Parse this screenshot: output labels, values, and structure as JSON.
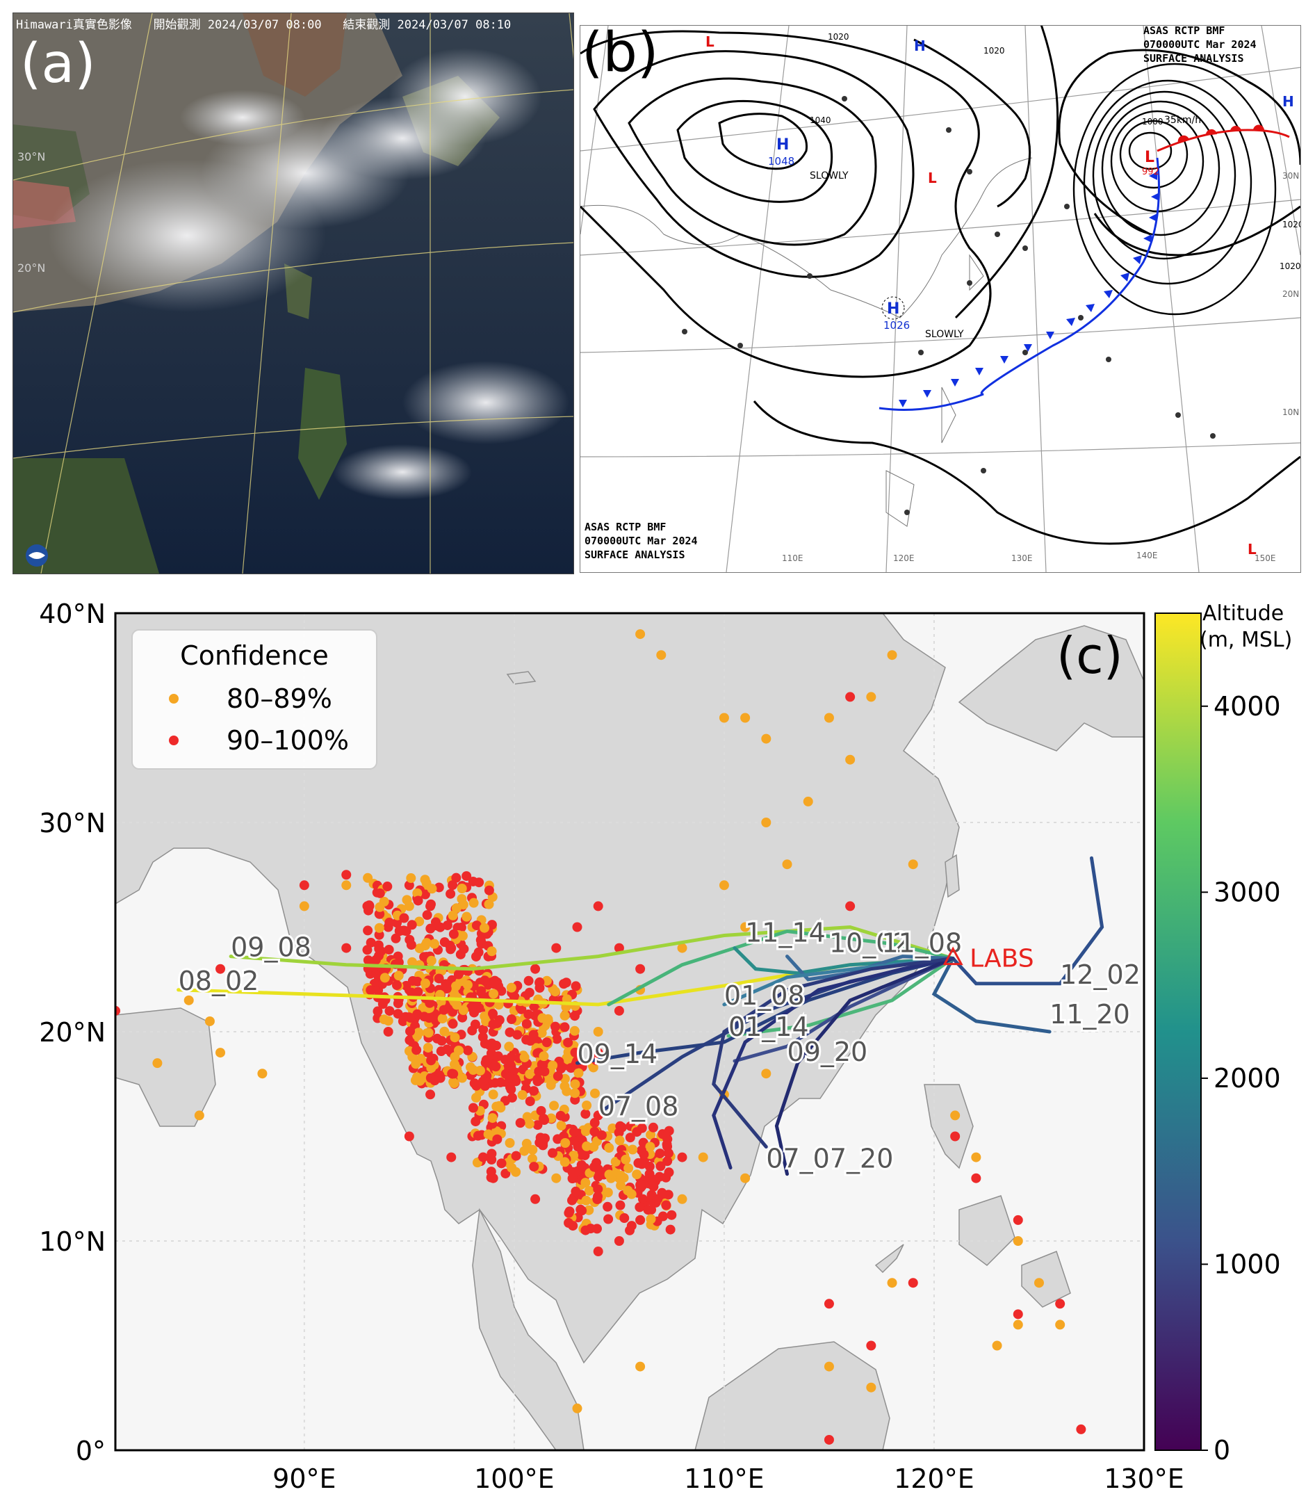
{
  "panel_a": {
    "label": "(a)",
    "header": "Himawari真實色影像   開始觀測 2024/03/07 08:00   結束觀測 2024/03/07 08:10",
    "lat_labels": [
      "30°N",
      "20°N"
    ]
  },
  "panel_b": {
    "label": "(b)",
    "title_top": [
      "ASAS   RCTP   BMF",
      "070000UTC   Mar   2024",
      "SURFACE  ANALYSIS"
    ],
    "title_bottom": [
      "ASAS   RCTP   BMF",
      "070000UTC   Mar   2024",
      "SURFACE  ANALYSIS"
    ],
    "high_centers": [
      {
        "symbol": "H",
        "pressure": "1048",
        "motion": "SLOWLY"
      },
      {
        "symbol": "H",
        "pressure": "1026",
        "motion": "SLOWLY"
      }
    ],
    "low_center": {
      "symbol": "L",
      "pressure": "992",
      "motion": "35km/h"
    },
    "isobar_labels": [
      "1020",
      "1020",
      "1040",
      "1000",
      "1020",
      "1020"
    ],
    "lon_labels": [
      "110E",
      "120E",
      "130E",
      "140E",
      "150E"
    ],
    "lat_labels": [
      "30N",
      "20N",
      "10N"
    ],
    "colors": {
      "high": "#1030d0",
      "low": "#e01010",
      "cold_front": "#1030e0",
      "warm_front": "#e01010"
    }
  },
  "panel_c": {
    "label": "(c)",
    "legend": {
      "title": "Confidence",
      "items": [
        {
          "label": "80–89%",
          "color": "#f5a623"
        },
        {
          "label": "90–100%",
          "color": "#ee2a2a"
        }
      ]
    },
    "site": {
      "label": "LABS",
      "lon": 120.9,
      "lat": 23.5,
      "color": "#e8231f"
    },
    "colorbar": {
      "title_line1": "Altitude",
      "title_line2": "(m, MSL)",
      "ticks": [
        "0",
        "1000",
        "2000",
        "3000",
        "4000"
      ],
      "min": 0,
      "max": 4500,
      "colors": [
        "#440154",
        "#3b528b",
        "#21918c",
        "#5ec962",
        "#fde725"
      ]
    },
    "x_ticks": [
      "90°E",
      "100°E",
      "110°E",
      "120°E",
      "130°E"
    ],
    "y_ticks": [
      "0°",
      "10°N",
      "20°N",
      "30°N",
      "40°N"
    ],
    "trajectory_labels": [
      "09_08",
      "08_02",
      "11_14",
      "10_02",
      "11_08",
      "12_02",
      "11_20",
      "01_08",
      "01_14",
      "09_20",
      "09_14",
      "07_08",
      "07_07_20"
    ]
  },
  "chart_data": {
    "type": "scatter",
    "xlim": [
      81,
      130
    ],
    "ylim": [
      0,
      40
    ],
    "series": [
      {
        "name": "80–89%",
        "points": [
          [
            84.5,
            21.5
          ],
          [
            85.5,
            20.5
          ],
          [
            86,
            19
          ],
          [
            88,
            18
          ],
          [
            83,
            18.5
          ],
          [
            85,
            16
          ],
          [
            90,
            26
          ],
          [
            92,
            27
          ],
          [
            95,
            26
          ],
          [
            98,
            25
          ],
          [
            97,
            19
          ],
          [
            99,
            17
          ],
          [
            101,
            16
          ],
          [
            103,
            15
          ],
          [
            105,
            13
          ],
          [
            106,
            11
          ],
          [
            104,
            12
          ],
          [
            102,
            13
          ],
          [
            100,
            21
          ],
          [
            103,
            22
          ],
          [
            106,
            22
          ],
          [
            108,
            24
          ],
          [
            110,
            27
          ],
          [
            112,
            30
          ],
          [
            114,
            31
          ],
          [
            115,
            35
          ],
          [
            117,
            36
          ],
          [
            118,
            38
          ],
          [
            107,
            38
          ],
          [
            106,
            39
          ],
          [
            110,
            35
          ],
          [
            111,
            35
          ],
          [
            112,
            34
          ],
          [
            116,
            33
          ],
          [
            119,
            28
          ],
          [
            113,
            28
          ],
          [
            111,
            25
          ],
          [
            121,
            16
          ],
          [
            122,
            14
          ],
          [
            124,
            10
          ],
          [
            125,
            8
          ],
          [
            126,
            6
          ],
          [
            124,
            6
          ],
          [
            123,
            5
          ],
          [
            118,
            8
          ],
          [
            115,
            4
          ],
          [
            117,
            3
          ],
          [
            106,
            4
          ],
          [
            103,
            2
          ],
          [
            94,
            23
          ],
          [
            96,
            23
          ],
          [
            98,
            23
          ],
          [
            100,
            18
          ],
          [
            101,
            19
          ],
          [
            104,
            20
          ],
          [
            107,
            15
          ],
          [
            108,
            12
          ],
          [
            109,
            14
          ],
          [
            111,
            13
          ],
          [
            110,
            17
          ],
          [
            112,
            18
          ]
        ]
      },
      {
        "name": "90–100%",
        "points": [
          [
            81,
            21
          ],
          [
            86,
            23
          ],
          [
            90,
            27
          ],
          [
            92,
            27.5
          ],
          [
            95,
            27
          ],
          [
            96,
            26
          ],
          [
            97,
            24
          ],
          [
            95,
            22
          ],
          [
            96,
            20
          ],
          [
            97,
            19
          ],
          [
            98,
            18
          ],
          [
            99,
            20
          ],
          [
            100,
            22
          ],
          [
            101,
            23
          ],
          [
            102,
            24
          ],
          [
            103,
            25
          ],
          [
            104,
            26
          ],
          [
            105,
            24
          ],
          [
            106,
            23
          ],
          [
            105,
            21
          ],
          [
            104,
            19
          ],
          [
            103,
            17
          ],
          [
            104,
            16
          ],
          [
            105,
            14
          ],
          [
            106,
            13
          ],
          [
            107,
            12
          ],
          [
            108,
            14
          ],
          [
            106,
            11
          ],
          [
            105,
            10
          ],
          [
            104,
            9.5
          ],
          [
            96,
            17
          ],
          [
            95,
            15
          ],
          [
            97,
            14
          ],
          [
            99,
            13
          ],
          [
            101,
            12
          ],
          [
            103,
            13
          ],
          [
            94,
            20
          ],
          [
            93,
            22
          ],
          [
            92,
            24
          ],
          [
            94,
            25
          ],
          [
            93,
            26
          ],
          [
            100,
            19
          ],
          [
            99,
            16
          ],
          [
            98,
            15
          ],
          [
            102,
            20
          ],
          [
            103,
            21
          ],
          [
            101,
            17
          ],
          [
            116,
            26
          ],
          [
            116,
            36
          ],
          [
            121,
            15
          ],
          [
            122,
            13
          ],
          [
            124,
            11
          ],
          [
            126,
            7
          ],
          [
            124,
            6.5
          ],
          [
            117,
            5
          ],
          [
            127,
            1
          ],
          [
            115,
            0.5
          ],
          [
            115,
            7
          ],
          [
            119,
            8
          ]
        ]
      }
    ],
    "trajectories": [
      {
        "name": "09_08",
        "end_label_lon": 86.5,
        "end_label_lat": 23.6
      },
      {
        "name": "08_02",
        "end_label_lon": 84,
        "end_label_lat": 22
      },
      {
        "name": "11_14",
        "end_label_lon": 111,
        "end_label_lat": 24.3
      },
      {
        "name": "10_02",
        "end_label_lon": 115,
        "end_label_lat": 23.8
      },
      {
        "name": "11_08",
        "end_label_lon": 117.5,
        "end_label_lat": 23.8
      },
      {
        "name": "12_02",
        "end_label_lon": 126,
        "end_label_lat": 22.3
      },
      {
        "name": "11_20",
        "end_label_lon": 125.5,
        "end_label_lat": 20.4
      },
      {
        "name": "01_08",
        "end_label_lon": 110,
        "end_label_lat": 21.3
      },
      {
        "name": "01_14",
        "end_label_lon": 110.2,
        "end_label_lat": 19.8
      },
      {
        "name": "09_20",
        "end_label_lon": 113,
        "end_label_lat": 18.6
      },
      {
        "name": "09_14",
        "end_label_lon": 103,
        "end_label_lat": 18.5
      },
      {
        "name": "07_08",
        "end_label_lon": 104,
        "end_label_lat": 16
      },
      {
        "name": "07_07_20",
        "end_label_lon": 112,
        "end_label_lat": 13.5
      }
    ]
  }
}
